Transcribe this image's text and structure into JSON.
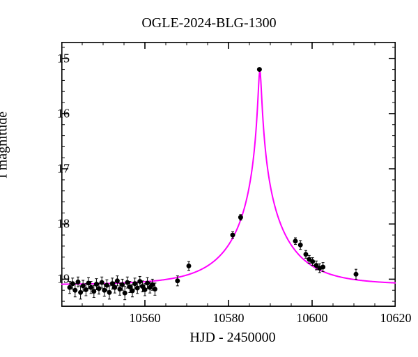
{
  "lightcurve": {
    "type": "scatter_with_model",
    "title": "OGLE-2024-BLG-1300",
    "title_fontsize": 20,
    "xlabel": "HJD - 2450000",
    "ylabel": "I magnitude",
    "label_fontsize": 20,
    "tick_fontsize": 18,
    "xlim": [
      10540,
      10620
    ],
    "ylim": [
      19.5,
      14.7
    ],
    "y_inverted": true,
    "xticks": [
      10560,
      10580,
      10600,
      10620
    ],
    "yticks": [
      15,
      16,
      17,
      18,
      19
    ],
    "x_minor_step": 5,
    "y_minor_step": 0.2,
    "background_color": "#ffffff",
    "axis_color": "#000000",
    "axis_linewidth": 1.6,
    "tick_len_major": 10,
    "tick_len_minor": 5,
    "model": {
      "color": "#ff00ff",
      "linewidth": 2.0,
      "t0": 10587.5,
      "tE": 13.0,
      "u0": 0.028,
      "m_base": 19.1,
      "fs": 1.0
    },
    "marker": {
      "shape": "circle",
      "size": 3.0,
      "face_color": "#000000",
      "edge_color": "#000000",
      "errorbar_color": "#000000",
      "errorbar_linewidth": 1.0,
      "errorbar_capwidth": 4
    },
    "data": [
      {
        "t": 10542.0,
        "m": 19.15,
        "e": 0.11
      },
      {
        "t": 10542.7,
        "m": 19.08,
        "e": 0.1
      },
      {
        "t": 10543.3,
        "m": 19.2,
        "e": 0.12
      },
      {
        "t": 10544.0,
        "m": 19.05,
        "e": 0.09
      },
      {
        "t": 10544.6,
        "m": 19.24,
        "e": 0.12
      },
      {
        "t": 10545.2,
        "m": 19.12,
        "e": 0.1
      },
      {
        "t": 10545.9,
        "m": 19.19,
        "e": 0.11
      },
      {
        "t": 10546.5,
        "m": 19.07,
        "e": 0.1
      },
      {
        "t": 10547.1,
        "m": 19.15,
        "e": 0.11
      },
      {
        "t": 10547.8,
        "m": 19.22,
        "e": 0.11
      },
      {
        "t": 10548.4,
        "m": 19.09,
        "e": 0.1
      },
      {
        "t": 10549.0,
        "m": 19.17,
        "e": 0.1
      },
      {
        "t": 10549.7,
        "m": 19.06,
        "e": 0.1
      },
      {
        "t": 10550.3,
        "m": 19.2,
        "e": 0.11
      },
      {
        "t": 10550.9,
        "m": 19.11,
        "e": 0.1
      },
      {
        "t": 10551.5,
        "m": 19.24,
        "e": 0.12
      },
      {
        "t": 10552.2,
        "m": 19.08,
        "e": 0.1
      },
      {
        "t": 10552.8,
        "m": 19.15,
        "e": 0.1
      },
      {
        "t": 10553.4,
        "m": 19.03,
        "e": 0.09
      },
      {
        "t": 10554.0,
        "m": 19.18,
        "e": 0.11
      },
      {
        "t": 10554.6,
        "m": 19.1,
        "e": 0.1
      },
      {
        "t": 10555.2,
        "m": 19.25,
        "e": 0.12
      },
      {
        "t": 10555.8,
        "m": 19.06,
        "e": 0.1
      },
      {
        "t": 10556.4,
        "m": 19.14,
        "e": 0.1
      },
      {
        "t": 10557.0,
        "m": 19.21,
        "e": 0.11
      },
      {
        "t": 10557.6,
        "m": 19.08,
        "e": 0.1
      },
      {
        "t": 10558.2,
        "m": 19.16,
        "e": 0.1
      },
      {
        "t": 10558.8,
        "m": 19.04,
        "e": 0.09
      },
      {
        "t": 10559.4,
        "m": 19.13,
        "e": 0.1
      },
      {
        "t": 10560.0,
        "m": 19.19,
        "e": 0.11
      },
      {
        "t": 10560.6,
        "m": 19.07,
        "e": 0.1
      },
      {
        "t": 10561.2,
        "m": 19.15,
        "e": 0.1
      },
      {
        "t": 10561.8,
        "m": 19.1,
        "e": 0.1
      },
      {
        "t": 10562.4,
        "m": 19.18,
        "e": 0.11
      },
      {
        "t": 10567.8,
        "m": 19.03,
        "e": 0.09
      },
      {
        "t": 10570.5,
        "m": 18.76,
        "e": 0.08
      },
      {
        "t": 10581.0,
        "m": 18.2,
        "e": 0.06
      },
      {
        "t": 10582.9,
        "m": 17.88,
        "e": 0.05
      },
      {
        "t": 10587.4,
        "m": 15.2,
        "e": 0.02
      },
      {
        "t": 10596.0,
        "m": 18.31,
        "e": 0.06
      },
      {
        "t": 10597.2,
        "m": 18.38,
        "e": 0.08
      },
      {
        "t": 10598.5,
        "m": 18.55,
        "e": 0.07
      },
      {
        "t": 10599.3,
        "m": 18.64,
        "e": 0.07
      },
      {
        "t": 10600.1,
        "m": 18.68,
        "e": 0.07
      },
      {
        "t": 10601.0,
        "m": 18.75,
        "e": 0.08
      },
      {
        "t": 10601.8,
        "m": 18.8,
        "e": 0.08
      },
      {
        "t": 10602.6,
        "m": 18.78,
        "e": 0.08
      },
      {
        "t": 10610.5,
        "m": 18.91,
        "e": 0.09
      }
    ]
  }
}
